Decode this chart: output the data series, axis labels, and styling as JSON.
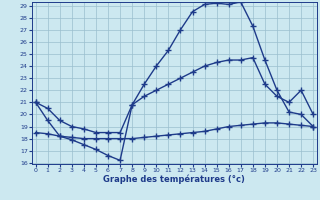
{
  "xlabel": "Graphe des températures (°c)",
  "bg_color": "#cce8f0",
  "line_color": "#1e3b8a",
  "grid_color": "#9bbfce",
  "ylim": [
    16,
    29
  ],
  "xlim": [
    -0.3,
    23.3
  ],
  "yticks": [
    16,
    17,
    18,
    19,
    20,
    21,
    22,
    23,
    24,
    25,
    26,
    27,
    28,
    29
  ],
  "xticks": [
    0,
    1,
    2,
    3,
    4,
    5,
    6,
    7,
    8,
    9,
    10,
    11,
    12,
    13,
    14,
    15,
    16,
    17,
    18,
    19,
    20,
    21,
    22,
    23
  ],
  "line1_x": [
    0,
    1,
    2,
    3,
    4,
    5,
    6,
    7,
    8,
    9,
    10,
    11,
    12,
    13,
    14,
    15,
    16,
    17,
    18,
    19,
    20,
    21,
    22,
    23
  ],
  "line1_y": [
    21.0,
    19.5,
    18.2,
    17.9,
    17.5,
    17.1,
    16.6,
    16.2,
    20.8,
    22.5,
    24.0,
    25.3,
    27.0,
    28.5,
    29.1,
    29.2,
    29.1,
    29.3,
    27.3,
    24.5,
    22.0,
    20.2,
    20.0,
    19.0
  ],
  "line2_x": [
    0,
    1,
    2,
    3,
    4,
    5,
    6,
    7,
    8,
    9,
    10,
    11,
    12,
    13,
    14,
    15,
    16,
    17,
    18,
    19,
    20,
    21,
    22,
    23
  ],
  "line2_y": [
    18.5,
    18.4,
    18.2,
    18.1,
    18.0,
    18.0,
    18.0,
    18.0,
    18.0,
    18.1,
    18.2,
    18.3,
    18.4,
    18.5,
    18.6,
    18.8,
    19.0,
    19.1,
    19.2,
    19.3,
    19.3,
    19.2,
    19.1,
    19.0
  ],
  "line3_x": [
    0,
    1,
    2,
    3,
    4,
    5,
    6,
    7,
    8,
    9,
    10,
    11,
    12,
    13,
    14,
    15,
    16,
    17,
    18,
    19,
    20,
    21,
    22,
    23
  ],
  "line3_y": [
    21.0,
    20.5,
    19.5,
    19.0,
    18.8,
    18.5,
    18.5,
    18.5,
    20.8,
    21.5,
    22.0,
    22.5,
    23.0,
    23.5,
    24.0,
    24.3,
    24.5,
    24.5,
    24.7,
    22.5,
    21.5,
    21.0,
    22.0,
    20.0
  ]
}
